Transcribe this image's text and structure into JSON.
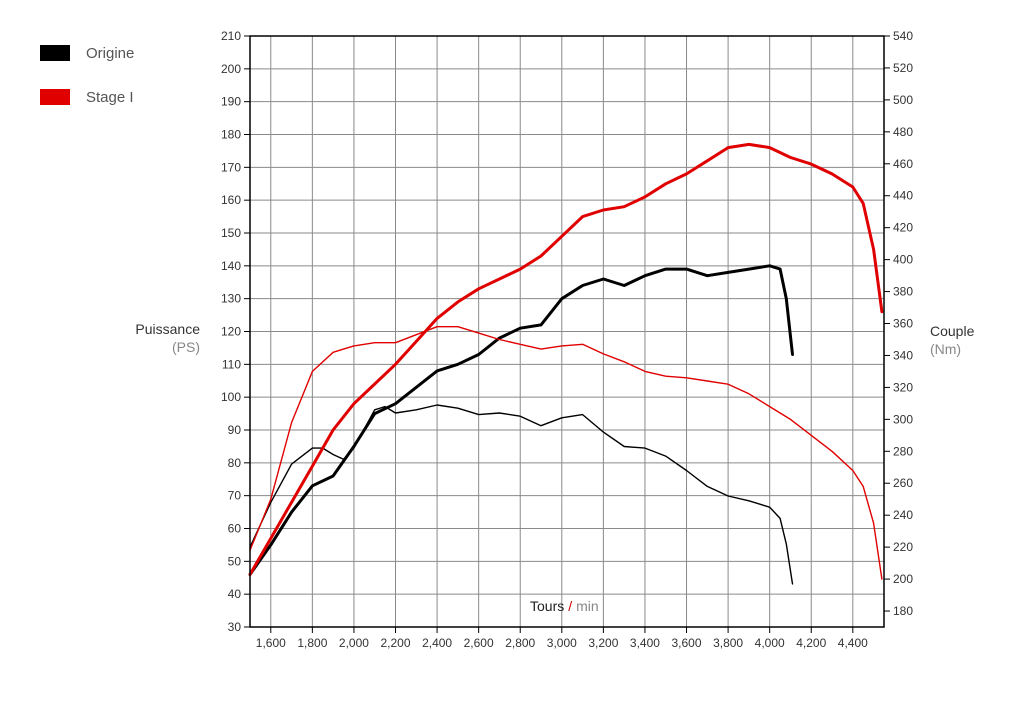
{
  "legend": {
    "items": [
      {
        "label": "Origine",
        "color": "#000000"
      },
      {
        "label": "Stage I",
        "color": "#e00000"
      }
    ]
  },
  "axes": {
    "left": {
      "title": "Puissance",
      "unit": "(PS)"
    },
    "right": {
      "title": "Couple",
      "unit": "(Nm)"
    },
    "x": {
      "title": "Tours",
      "separator": "/",
      "unit": "min"
    }
  },
  "chart_data": {
    "type": "line",
    "grid": true,
    "legend_position": "top-left",
    "x_range": [
      1500,
      4550
    ],
    "x_ticks": [
      1600,
      1800,
      2000,
      2200,
      2400,
      2600,
      2800,
      3000,
      3200,
      3400,
      3600,
      3800,
      4000,
      4200,
      4400
    ],
    "x_tick_labels": [
      "1,600",
      "1,800",
      "2,000",
      "2,200",
      "2,400",
      "2,600",
      "2,800",
      "3,000",
      "3,200",
      "3,400",
      "3,600",
      "3,800",
      "4,000",
      "4,200",
      "4,400"
    ],
    "y_left_range": [
      30,
      210
    ],
    "y_left_ticks": [
      30,
      40,
      50,
      60,
      70,
      80,
      90,
      100,
      110,
      120,
      130,
      140,
      150,
      160,
      170,
      180,
      190,
      200,
      210
    ],
    "y_right_range": [
      170,
      540
    ],
    "y_right_ticks": [
      180,
      200,
      220,
      240,
      260,
      280,
      300,
      320,
      340,
      360,
      380,
      400,
      420,
      440,
      460,
      480,
      500,
      520,
      540
    ],
    "series": [
      {
        "name": "Origine",
        "quantity": "power",
        "axis": "left",
        "color": "#000000",
        "x": [
          1500,
          1600,
          1700,
          1800,
          1900,
          2000,
          2100,
          2200,
          2300,
          2400,
          2500,
          2600,
          2700,
          2800,
          2900,
          3000,
          3100,
          3200,
          3300,
          3400,
          3500,
          3600,
          3700,
          3800,
          3900,
          4000,
          4050,
          4080,
          4110
        ],
        "y": [
          46,
          55,
          65,
          73,
          76,
          85,
          95,
          98,
          103,
          108,
          110,
          113,
          118,
          121,
          122,
          130,
          134,
          136,
          134,
          137,
          139,
          139,
          137,
          138,
          139,
          140,
          139,
          130,
          113
        ]
      },
      {
        "name": "Origine",
        "quantity": "torque",
        "axis": "right",
        "color": "#000000",
        "x": [
          1500,
          1600,
          1700,
          1800,
          1850,
          1900,
          1950,
          2000,
          2100,
          2150,
          2200,
          2300,
          2400,
          2500,
          2600,
          2700,
          2800,
          2900,
          3000,
          3100,
          3200,
          3300,
          3400,
          3500,
          3600,
          3700,
          3800,
          3900,
          4000,
          4050,
          4080,
          4110
        ],
        "y": [
          220,
          248,
          272,
          282,
          282,
          278,
          275,
          282,
          306,
          308,
          304,
          306,
          309,
          307,
          303,
          304,
          302,
          296,
          301,
          303,
          292,
          283,
          282,
          277,
          268,
          258,
          252,
          249,
          245,
          238,
          222,
          197
        ]
      },
      {
        "name": "Stage I",
        "quantity": "power",
        "axis": "left",
        "color": "#e00000",
        "x": [
          1500,
          1600,
          1700,
          1800,
          1900,
          2000,
          2100,
          2200,
          2300,
          2400,
          2500,
          2600,
          2700,
          2800,
          2900,
          3000,
          3100,
          3200,
          3300,
          3400,
          3500,
          3600,
          3700,
          3800,
          3900,
          4000,
          4100,
          4200,
          4300,
          4400,
          4450,
          4500,
          4540
        ],
        "y": [
          46,
          57,
          68,
          79,
          90,
          98,
          104,
          110,
          117,
          124,
          129,
          133,
          136,
          139,
          143,
          149,
          155,
          157,
          158,
          161,
          165,
          168,
          172,
          176,
          177,
          176,
          173,
          171,
          168,
          164,
          159,
          145,
          126
        ]
      },
      {
        "name": "Stage I",
        "quantity": "torque",
        "axis": "right",
        "color": "#e00000",
        "x": [
          1500,
          1600,
          1700,
          1800,
          1900,
          1950,
          2000,
          2100,
          2200,
          2300,
          2400,
          2500,
          2600,
          2700,
          2800,
          2900,
          3000,
          3100,
          3200,
          3300,
          3400,
          3500,
          3600,
          3700,
          3800,
          3900,
          4000,
          4100,
          4200,
          4300,
          4400,
          4450,
          4500,
          4540
        ],
        "y": [
          218,
          250,
          298,
          330,
          342,
          344,
          346,
          348,
          348,
          353,
          358,
          358,
          354,
          350,
          347,
          344,
          346,
          347,
          341,
          336,
          330,
          327,
          326,
          324,
          322,
          316,
          308,
          300,
          290,
          280,
          268,
          258,
          235,
          200
        ]
      }
    ]
  }
}
